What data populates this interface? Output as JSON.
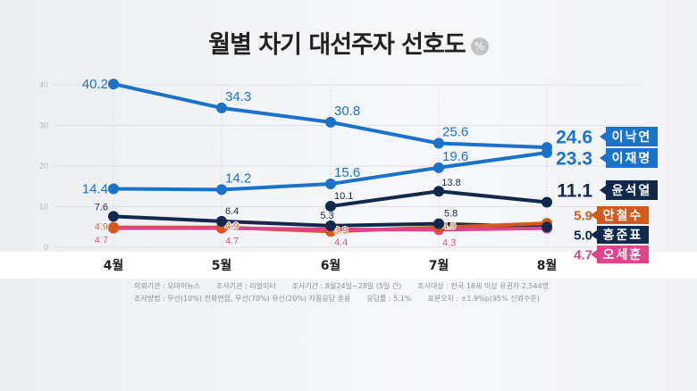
{
  "chart_data": {
    "type": "line",
    "title": "월별 차기 대선주자 선호도",
    "unit": "%",
    "xlabel": "",
    "ylabel": "",
    "categories": [
      "4월",
      "5월",
      "6월",
      "7월",
      "8월"
    ],
    "ylim": [
      0,
      40
    ],
    "yticks": [
      "0",
      "10",
      "20",
      "30",
      "40"
    ],
    "grid": true,
    "series": [
      {
        "name": "이낙연",
        "color": "#1a73c8",
        "values": [
          40.2,
          34.3,
          30.8,
          25.6,
          24.6
        ],
        "labels": [
          "40.2",
          "34.3",
          "30.8",
          "25.6",
          "24.6"
        ]
      },
      {
        "name": "이재명",
        "color": "#1a73c8",
        "values": [
          14.4,
          14.2,
          15.6,
          19.6,
          23.3
        ],
        "labels": [
          "14.4",
          "14.2",
          "15.6",
          "19.6",
          "23.3"
        ]
      },
      {
        "name": "윤석열",
        "color": "#12284c",
        "values": [
          null,
          null,
          10.1,
          13.8,
          11.1
        ],
        "labels": [
          "",
          "",
          "10.1",
          "13.8",
          "11.1"
        ]
      },
      {
        "name": "홍준표",
        "color": "#12284c",
        "values": [
          7.6,
          6.4,
          5.3,
          5.8,
          5.0
        ],
        "labels": [
          "7.6",
          "6.4",
          "5.3",
          "5.8",
          "5.0"
        ]
      },
      {
        "name": "안철수",
        "color": "#d35a1a",
        "values": [
          4.9,
          4.9,
          3.9,
          4.9,
          5.9
        ],
        "labels": [
          "4.9",
          "4.9",
          "3.9",
          "4.9",
          "5.9"
        ]
      },
      {
        "name": "오세훈",
        "color": "#e0458b",
        "values": [
          4.7,
          4.7,
          4.4,
          4.3,
          4.7
        ],
        "labels": [
          "4.7",
          "4.7",
          "4.4",
          "4.3",
          "4.7"
        ]
      }
    ]
  },
  "footer": {
    "client": "의뢰기관 : 오마이뉴스",
    "agency": "조사기관 : 리얼미터",
    "period": "조사기간 : 8월24일~28일 (5일 간)",
    "target": "조사대상 : 전국 18세 이상 유권자 2,544명",
    "method": "조사방법 : 무선(10%) 전화면접, 무선(70%) 유선(20%) 자동응답 혼용",
    "response": "응답률 : 5.1%",
    "error": "표본오차 : ±1.9%p(95% 신뢰수준)"
  }
}
